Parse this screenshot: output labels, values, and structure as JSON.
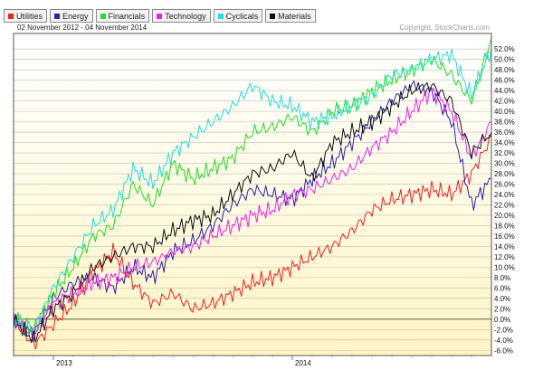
{
  "chart_data": {
    "type": "line",
    "date_range": "02 November 2012 - 04 November 2014",
    "copyright": "Copyright, StockCharts.com",
    "x_ticks": [
      {
        "label": "2013",
        "x": "2013-01"
      },
      {
        "label": "2014",
        "x": "2014-01"
      }
    ],
    "x_range": [
      "2012-11",
      "2014-11"
    ],
    "ylim": [
      -7,
      55
    ],
    "y_ticks": [
      52,
      50,
      48,
      46,
      44,
      42,
      40,
      38,
      36,
      34,
      32,
      30,
      28,
      26,
      24,
      22,
      20,
      18,
      16,
      14,
      12,
      10,
      8,
      6,
      4,
      2,
      0,
      -2,
      -4,
      -6
    ],
    "y_tick_labels": [
      "52.0%",
      "50.0%",
      "48.0%",
      "46.0%",
      "44.0%",
      "42.0%",
      "40.0%",
      "38.0%",
      "36.0%",
      "34.0%",
      "32.0%",
      "30.0%",
      "28.0%",
      "26.0%",
      "24.0%",
      "22.0%",
      "20.0%",
      "18.0%",
      "16.0%",
      "14.0%",
      "12.0%",
      "10.0%",
      "8.0%",
      "6.0%",
      "4.0%",
      "2.0%",
      "0.0%",
      "-2.0%",
      "-4.0%",
      "-6.0%"
    ],
    "grid": true,
    "legend_position": "top-left",
    "x": [
      "2012-11",
      "2012-12",
      "2013-01",
      "2013-02",
      "2013-03",
      "2013-04",
      "2013-05",
      "2013-06",
      "2013-07",
      "2013-08",
      "2013-09",
      "2013-10",
      "2013-11",
      "2013-12",
      "2014-01",
      "2014-02",
      "2014-03",
      "2014-04",
      "2014-05",
      "2014-06",
      "2014-07",
      "2014-08",
      "2014-09",
      "2014-10",
      "2014-11"
    ],
    "series": [
      {
        "name": "Utilities",
        "color": "#ee2222",
        "values": [
          0,
          -5,
          -1,
          3,
          9,
          13,
          7,
          3,
          5,
          2,
          3,
          5,
          7,
          8,
          10,
          12,
          14,
          17,
          21,
          23,
          24,
          25,
          24,
          28,
          35
        ]
      },
      {
        "name": "Energy",
        "color": "#2a22b2",
        "values": [
          0,
          -3,
          4,
          7,
          8,
          6,
          10,
          8,
          13,
          15,
          18,
          22,
          25,
          24,
          23,
          27,
          30,
          34,
          38,
          42,
          45,
          44,
          38,
          22,
          27
        ]
      },
      {
        "name": "Financials",
        "color": "#22dd22",
        "values": [
          0,
          -2,
          5,
          10,
          16,
          18,
          26,
          22,
          30,
          27,
          29,
          31,
          36,
          37,
          39,
          36,
          40,
          41,
          44,
          46,
          48,
          50,
          47,
          42,
          54
        ]
      },
      {
        "name": "Technology",
        "color": "#ee22ee",
        "values": [
          0,
          -3,
          3,
          5,
          7,
          8,
          10,
          11,
          13,
          14,
          16,
          18,
          20,
          21,
          24,
          25,
          27,
          29,
          33,
          36,
          40,
          44,
          40,
          31,
          38
        ]
      },
      {
        "name": "Cyclicals",
        "color": "#22dddd",
        "values": [
          0,
          -2,
          6,
          12,
          18,
          21,
          29,
          26,
          32,
          35,
          38,
          41,
          45,
          42,
          41,
          38,
          39,
          41,
          43,
          47,
          48,
          50,
          51,
          43,
          52
        ]
      },
      {
        "name": "Materials",
        "color": "#111111",
        "values": [
          0,
          -4,
          2,
          5,
          10,
          12,
          14,
          14,
          17,
          19,
          20,
          24,
          28,
          29,
          32,
          27,
          34,
          36,
          38,
          41,
          44,
          45,
          42,
          32,
          36
        ]
      }
    ]
  }
}
